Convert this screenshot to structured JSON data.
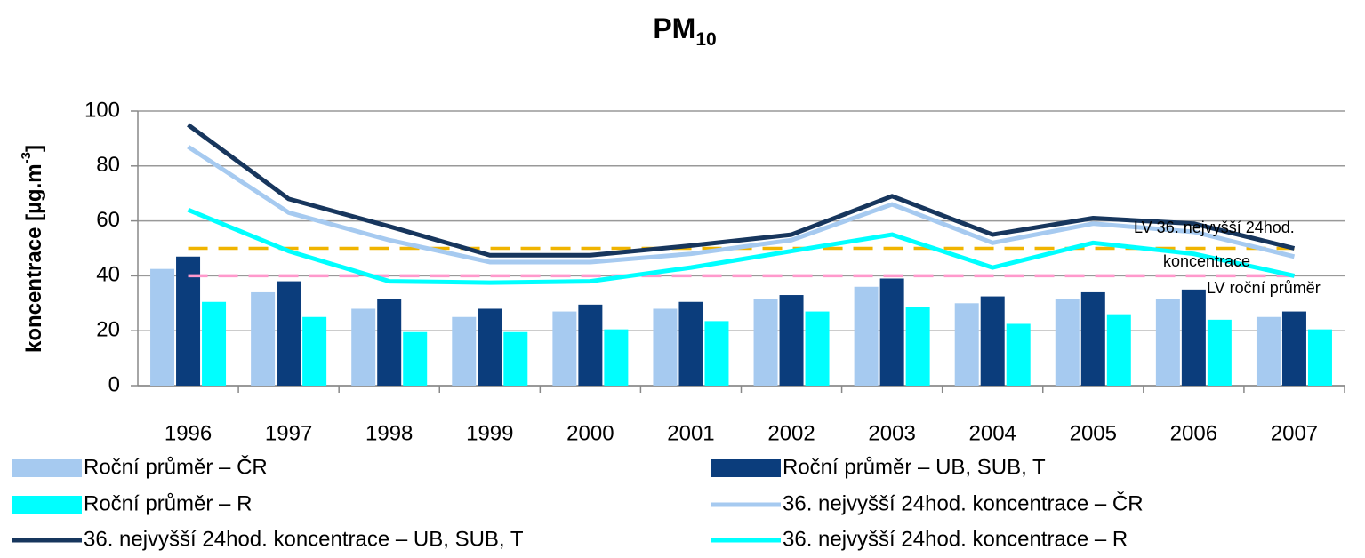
{
  "chart_data": {
    "type": "bar",
    "title": "PM",
    "title_subscript": "10",
    "ylabel": "koncentrace [µg.m",
    "ylabel_superscript": "-3",
    "ylabel_end": "]",
    "categories": [
      "1996",
      "1997",
      "1998",
      "1999",
      "2000",
      "2001",
      "2002",
      "2003",
      "2004",
      "2005",
      "2006",
      "2007"
    ],
    "ylim": [
      0,
      100
    ],
    "yticks": [
      0,
      20,
      40,
      60,
      80,
      100
    ],
    "grid": true,
    "series": [
      {
        "name": "Roční průměr – ČR",
        "type": "bar",
        "color": "#a6caf0",
        "values": [
          42.5,
          34,
          28,
          25,
          27,
          28,
          31.5,
          36,
          30,
          31.5,
          31.5,
          25
        ]
      },
      {
        "name": "Roční průměr – UB, SUB, T",
        "type": "bar",
        "color": "#0b3d7c",
        "values": [
          47,
          38,
          31.5,
          28,
          29.5,
          30.5,
          33,
          39,
          32.5,
          34,
          35,
          27
        ]
      },
      {
        "name": "Roční průměr – R",
        "type": "bar",
        "color": "#00ffff",
        "values": [
          30.5,
          25,
          19.5,
          19.5,
          20.5,
          23.5,
          27,
          28.5,
          22.5,
          26,
          24,
          20.5
        ]
      },
      {
        "name": "36. nejvyšší 24hod. koncentrace – ČR",
        "type": "line",
        "color": "#a6caf0",
        "values": [
          87,
          63,
          53,
          45,
          45,
          48,
          53,
          66,
          52,
          59,
          56,
          47
        ]
      },
      {
        "name": "36. nejvyšší 24hod. koncentrace – UB, SUB, T",
        "type": "line",
        "color": "#17365d",
        "values": [
          95,
          68,
          58,
          47.5,
          47.5,
          51,
          55,
          69,
          55,
          61,
          59,
          50
        ]
      },
      {
        "name": "36. nejvyšší 24hod. koncentrace – R",
        "type": "line",
        "color": "#00ffff",
        "values": [
          64,
          49,
          38,
          37.5,
          38,
          43,
          49,
          55,
          43,
          52,
          48,
          40
        ]
      }
    ],
    "reference_lines": [
      {
        "value": 50,
        "color": "#f0b400",
        "label": [
          "LV 36. nejvyšší 24hod.",
          "koncentrace"
        ]
      },
      {
        "value": 40,
        "color": "#ff99cc",
        "label": [
          "LV roční průměr"
        ]
      }
    ]
  }
}
